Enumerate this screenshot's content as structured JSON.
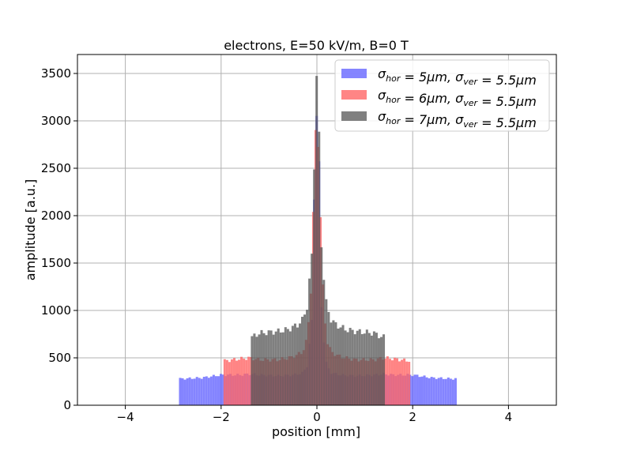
{
  "chart_data": {
    "type": "bar",
    "title": "electrons, E=50 kV/m, B=0 T",
    "xlabel": "position [mm]",
    "ylabel": "amplitude [a.u.]",
    "xlim": [
      -5,
      5
    ],
    "ylim": [
      0,
      3700
    ],
    "xticks": [
      -4,
      -2,
      0,
      2,
      4
    ],
    "xtick_labels": [
      "−4",
      "−2",
      "0",
      "2",
      "4"
    ],
    "yticks": [
      0,
      500,
      1000,
      1500,
      2000,
      2500,
      3000,
      3500
    ],
    "grid": true,
    "legend_position": "top-right",
    "bin_width_mm": 0.05,
    "series": [
      {
        "name_base": "σ",
        "name_sub1": "hor",
        "name_mid": " = 5μm, σ",
        "name_sub2": "ver",
        "name_end": " = 5.5μm",
        "color": "#6666ff",
        "alpha": 0.8,
        "half_width": 2.88,
        "x": [
          -2.8,
          -2.4,
          -2.0,
          -1.6,
          -1.4,
          -1.2,
          -0.8,
          -0.5,
          -0.3,
          -0.2,
          -0.1,
          -0.05,
          0,
          0.05,
          0.1,
          0.2,
          0.3,
          0.5,
          0.8,
          1.2,
          1.4,
          1.6,
          2.0,
          2.4,
          2.8
        ],
        "values": [
          280,
          290,
          320,
          320,
          330,
          320,
          310,
          320,
          340,
          420,
          900,
          2400,
          3150,
          2400,
          900,
          420,
          340,
          320,
          310,
          320,
          330,
          320,
          320,
          290,
          280
        ]
      },
      {
        "name_base": "σ",
        "name_sub1": "hor",
        "name_mid": " = 6μm, σ",
        "name_sub2": "ver",
        "name_end": " = 5.5μm",
        "color": "#ff6666",
        "alpha": 0.8,
        "half_width": 1.95,
        "x": [
          -1.9,
          -1.6,
          -1.4,
          -1.2,
          -0.8,
          -0.5,
          -0.3,
          -0.2,
          -0.1,
          -0.05,
          0,
          0.05,
          0.1,
          0.2,
          0.3,
          0.5,
          0.8,
          1.2,
          1.4,
          1.6,
          1.9
        ],
        "values": [
          470,
          490,
          500,
          480,
          480,
          510,
          560,
          700,
          1400,
          2600,
          3050,
          2600,
          1400,
          700,
          560,
          510,
          480,
          480,
          500,
          490,
          470
        ],
        "shoulder": 500
      },
      {
        "name_base": "σ",
        "name_sub1": "hor",
        "name_mid": " = 7μm, σ",
        "name_sub2": "ver",
        "name_end": " = 5.5μm",
        "color": "#555555",
        "alpha": 0.75,
        "half_width": 1.38,
        "x": [
          -1.35,
          -1.2,
          -1.0,
          -0.8,
          -0.6,
          -0.4,
          -0.3,
          -0.2,
          -0.1,
          -0.05,
          0,
          0.05,
          0.1,
          0.2,
          0.3,
          0.4,
          0.6,
          0.8,
          1.0,
          1.2,
          1.35
        ],
        "values": [
          720,
          760,
          770,
          780,
          800,
          850,
          900,
          1050,
          1600,
          2700,
          3540,
          2700,
          1600,
          1050,
          900,
          850,
          800,
          780,
          770,
          760,
          720
        ]
      }
    ]
  }
}
